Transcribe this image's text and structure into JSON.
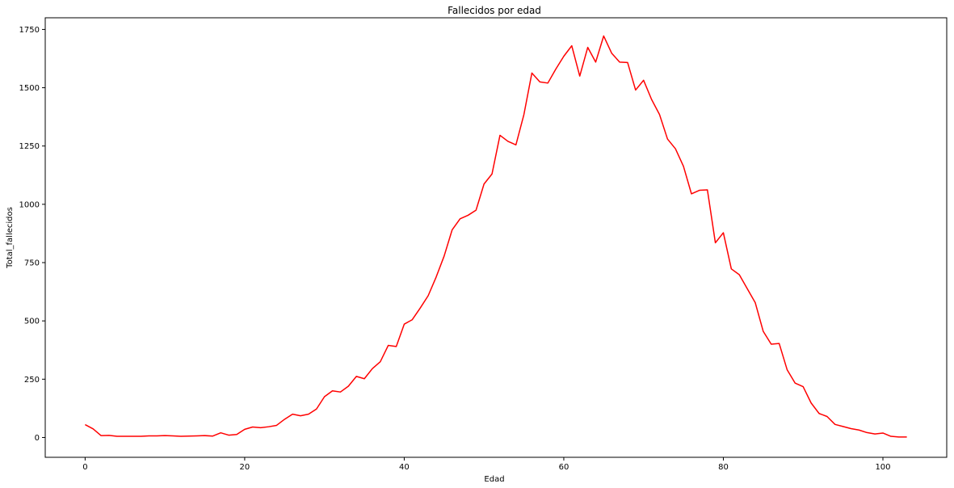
{
  "chart_data": {
    "type": "line",
    "title": "Fallecidos por edad",
    "xlabel": "Edad",
    "ylabel": "Total_fallecidos",
    "xlim": [
      -5,
      108
    ],
    "ylim": [
      -85,
      1800
    ],
    "xticks": [
      0,
      20,
      40,
      60,
      80,
      100
    ],
    "yticks": [
      0,
      250,
      500,
      750,
      1000,
      1250,
      1500,
      1750
    ],
    "grid": false,
    "series": [
      {
        "color": "#ff0000",
        "x": [
          0,
          1,
          2,
          3,
          4,
          5,
          6,
          7,
          8,
          9,
          10,
          11,
          12,
          13,
          14,
          15,
          16,
          17,
          18,
          19,
          20,
          21,
          22,
          23,
          24,
          25,
          26,
          27,
          28,
          29,
          30,
          31,
          32,
          33,
          34,
          35,
          36,
          37,
          38,
          39,
          40,
          41,
          42,
          43,
          44,
          45,
          46,
          47,
          48,
          49,
          50,
          51,
          52,
          53,
          54,
          55,
          56,
          57,
          58,
          59,
          60,
          61,
          62,
          63,
          64,
          65,
          66,
          67,
          68,
          69,
          70,
          71,
          72,
          73,
          74,
          75,
          76,
          77,
          78,
          79,
          80,
          81,
          82,
          83,
          84,
          85,
          86,
          87,
          88,
          89,
          90,
          91,
          92,
          93,
          94,
          95,
          96,
          97,
          98,
          99,
          100,
          101,
          102,
          103
        ],
        "y": [
          55,
          37,
          8,
          9,
          5,
          5,
          5,
          5,
          7,
          7,
          8,
          7,
          5,
          6,
          7,
          8,
          6,
          20,
          10,
          13,
          35,
          45,
          42,
          46,
          52,
          78,
          100,
          93,
          100,
          122,
          175,
          200,
          195,
          220,
          262,
          252,
          295,
          325,
          395,
          390,
          486,
          505,
          555,
          608,
          688,
          778,
          890,
          938,
          953,
          975,
          1087,
          1130,
          1296,
          1270,
          1255,
          1385,
          1563,
          1525,
          1520,
          1580,
          1635,
          1680,
          1550,
          1673,
          1610,
          1722,
          1648,
          1610,
          1608,
          1490,
          1532,
          1450,
          1385,
          1280,
          1238,
          1163,
          1045,
          1060,
          1062,
          835,
          878,
          723,
          698,
          638,
          578,
          455,
          400,
          403,
          290,
          233,
          218,
          148,
          103,
          90,
          56,
          47,
          38,
          32,
          21,
          15,
          19,
          5,
          2,
          2
        ]
      }
    ]
  }
}
